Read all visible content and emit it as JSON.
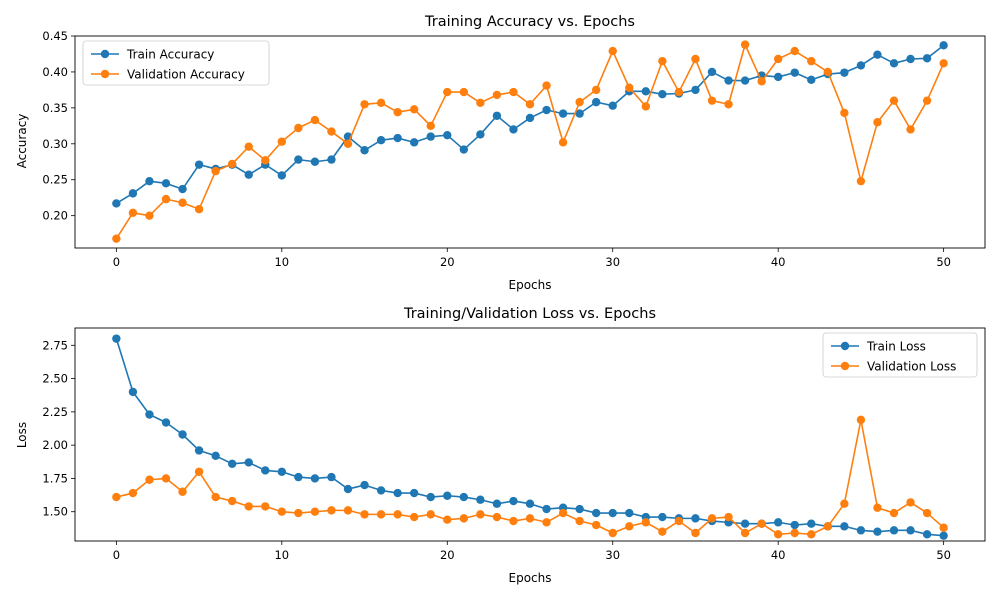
{
  "chart_data": [
    {
      "type": "line",
      "title": "Training Accuracy vs. Epochs",
      "xlabel": "Epochs",
      "ylabel": "Accuracy",
      "xlim": [
        -2.5,
        52.5
      ],
      "ylim": [
        0.155,
        0.45
      ],
      "xticks": [
        0,
        10,
        20,
        30,
        40,
        50
      ],
      "yticks": [
        0.2,
        0.25,
        0.3,
        0.35,
        0.4,
        0.45
      ],
      "xtick_labels": [
        "0",
        "10",
        "20",
        "30",
        "40",
        "50"
      ],
      "ytick_labels": [
        "0.20",
        "0.25",
        "0.30",
        "0.35",
        "0.40",
        "0.45"
      ],
      "legend_position": "upper-left",
      "grid": false,
      "x": [
        0,
        1,
        2,
        3,
        4,
        5,
        6,
        7,
        8,
        9,
        10,
        11,
        12,
        13,
        14,
        15,
        16,
        17,
        18,
        19,
        20,
        21,
        22,
        23,
        24,
        25,
        26,
        27,
        28,
        29,
        30,
        31,
        32,
        33,
        34,
        35,
        36,
        37,
        38,
        39,
        40,
        41,
        42,
        43,
        44,
        45,
        46,
        47,
        48,
        49,
        50
      ],
      "series": [
        {
          "name": "Train Accuracy",
          "color": "#1f77b4",
          "values": [
            0.217,
            0.231,
            0.248,
            0.245,
            0.237,
            0.271,
            0.265,
            0.271,
            0.257,
            0.271,
            0.256,
            0.278,
            0.275,
            0.278,
            0.31,
            0.291,
            0.305,
            0.308,
            0.302,
            0.31,
            0.312,
            0.292,
            0.313,
            0.339,
            0.32,
            0.336,
            0.347,
            0.342,
            0.342,
            0.358,
            0.353,
            0.373,
            0.373,
            0.369,
            0.37,
            0.375,
            0.4,
            0.388,
            0.388,
            0.395,
            0.393,
            0.399,
            0.389,
            0.397,
            0.399,
            0.409,
            0.424,
            0.412,
            0.418,
            0.419,
            0.437
          ]
        },
        {
          "name": "Validation Accuracy",
          "color": "#ff7f0e",
          "values": [
            0.168,
            0.204,
            0.2,
            0.223,
            0.218,
            0.209,
            0.262,
            0.272,
            0.296,
            0.277,
            0.303,
            0.322,
            0.333,
            0.317,
            0.3,
            0.355,
            0.357,
            0.344,
            0.348,
            0.325,
            0.372,
            0.372,
            0.357,
            0.368,
            0.372,
            0.355,
            0.381,
            0.302,
            0.358,
            0.375,
            0.429,
            0.378,
            0.352,
            0.415,
            0.372,
            0.418,
            0.36,
            0.355,
            0.438,
            0.387,
            0.418,
            0.429,
            0.415,
            0.4,
            0.343,
            0.248,
            0.33,
            0.36,
            0.32,
            0.36,
            0.412
          ]
        }
      ]
    },
    {
      "type": "line",
      "title": "Training/Validation Loss vs. Epochs",
      "xlabel": "Epochs",
      "ylabel": "Loss",
      "xlim": [
        -2.5,
        52.5
      ],
      "ylim": [
        1.28,
        2.88
      ],
      "xticks": [
        0,
        10,
        20,
        30,
        40,
        50
      ],
      "yticks": [
        1.5,
        1.75,
        2.0,
        2.25,
        2.5,
        2.75
      ],
      "xtick_labels": [
        "0",
        "10",
        "20",
        "30",
        "40",
        "50"
      ],
      "ytick_labels": [
        "1.50",
        "1.75",
        "2.00",
        "2.25",
        "2.50",
        "2.75"
      ],
      "legend_position": "upper-right",
      "grid": false,
      "x": [
        0,
        1,
        2,
        3,
        4,
        5,
        6,
        7,
        8,
        9,
        10,
        11,
        12,
        13,
        14,
        15,
        16,
        17,
        18,
        19,
        20,
        21,
        22,
        23,
        24,
        25,
        26,
        27,
        28,
        29,
        30,
        31,
        32,
        33,
        34,
        35,
        36,
        37,
        38,
        39,
        40,
        41,
        42,
        43,
        44,
        45,
        46,
        47,
        48,
        49,
        50
      ],
      "series": [
        {
          "name": "Train Loss",
          "color": "#1f77b4",
          "values": [
            2.8,
            2.4,
            2.23,
            2.17,
            2.08,
            1.96,
            1.92,
            1.86,
            1.87,
            1.81,
            1.8,
            1.76,
            1.75,
            1.76,
            1.67,
            1.7,
            1.66,
            1.64,
            1.64,
            1.61,
            1.62,
            1.61,
            1.59,
            1.56,
            1.58,
            1.56,
            1.52,
            1.53,
            1.52,
            1.49,
            1.49,
            1.49,
            1.46,
            1.46,
            1.45,
            1.45,
            1.43,
            1.42,
            1.41,
            1.41,
            1.42,
            1.4,
            1.41,
            1.39,
            1.39,
            1.36,
            1.35,
            1.36,
            1.36,
            1.33,
            1.32
          ]
        },
        {
          "name": "Validation Loss",
          "color": "#ff7f0e",
          "values": [
            1.61,
            1.64,
            1.74,
            1.75,
            1.65,
            1.8,
            1.61,
            1.58,
            1.54,
            1.54,
            1.5,
            1.49,
            1.5,
            1.51,
            1.51,
            1.48,
            1.48,
            1.48,
            1.46,
            1.48,
            1.44,
            1.45,
            1.48,
            1.46,
            1.43,
            1.45,
            1.42,
            1.49,
            1.43,
            1.4,
            1.34,
            1.39,
            1.42,
            1.35,
            1.43,
            1.34,
            1.45,
            1.46,
            1.34,
            1.41,
            1.33,
            1.34,
            1.33,
            1.39,
            1.56,
            2.19,
            1.53,
            1.49,
            1.57,
            1.49,
            1.38
          ]
        }
      ]
    }
  ]
}
